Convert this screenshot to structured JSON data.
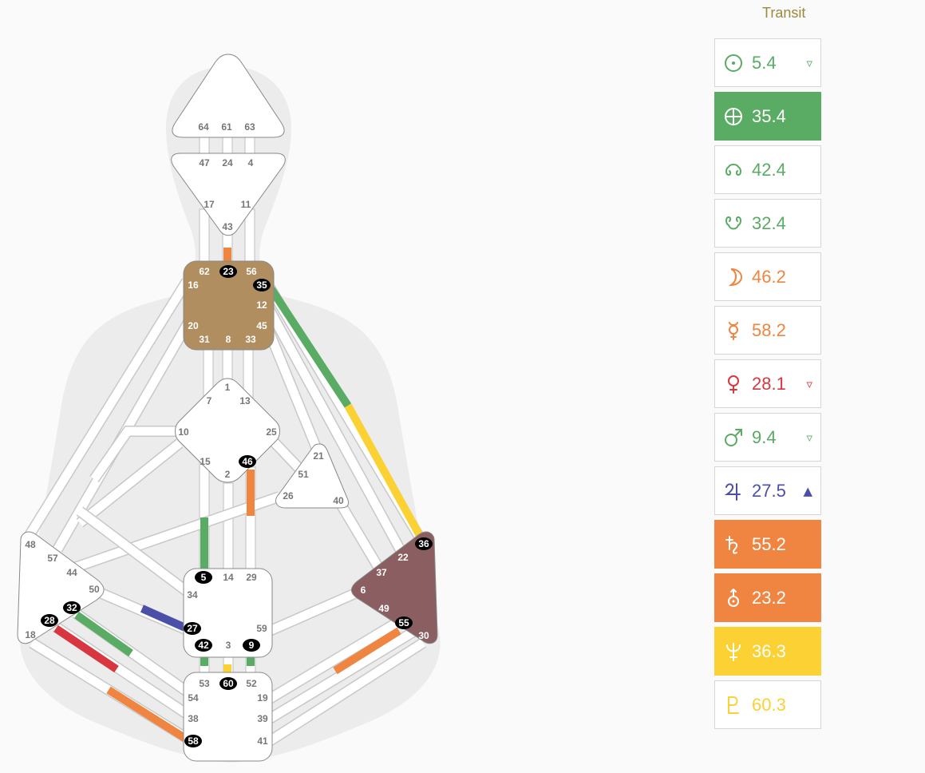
{
  "transit_title": "Transit",
  "planets": [
    {
      "icon": "sun-icon",
      "value": "5.4",
      "arrow": "▿",
      "color": "#5aab64",
      "bg": "#ffffff"
    },
    {
      "icon": "earth-icon",
      "value": "35.4",
      "arrow": "",
      "color": "#ffffff",
      "bg": "#5aab64"
    },
    {
      "icon": "north-node-icon",
      "value": "42.4",
      "arrow": "",
      "color": "#5aab64",
      "bg": "#ffffff"
    },
    {
      "icon": "south-node-icon",
      "value": "32.4",
      "arrow": "",
      "color": "#5aab64",
      "bg": "#ffffff"
    },
    {
      "icon": "moon-icon",
      "value": "46.2",
      "arrow": "",
      "color": "#ef8540",
      "bg": "#ffffff"
    },
    {
      "icon": "mercury-icon",
      "value": "58.2",
      "arrow": "",
      "color": "#ef8540",
      "bg": "#ffffff"
    },
    {
      "icon": "venus-icon",
      "value": "28.1",
      "arrow": "▿",
      "color": "#d9373f",
      "bg": "#ffffff"
    },
    {
      "icon": "mars-icon",
      "value": "9.4",
      "arrow": "▿",
      "color": "#5aab64",
      "bg": "#ffffff"
    },
    {
      "icon": "jupiter-icon",
      "value": "27.5",
      "arrow": "▲",
      "color": "#4b4fa8",
      "bg": "#ffffff"
    },
    {
      "icon": "saturn-icon",
      "value": "55.2",
      "arrow": "",
      "color": "#ffffff",
      "bg": "#ef8540"
    },
    {
      "icon": "uranus-icon",
      "value": "23.2",
      "arrow": "",
      "color": "#ffffff",
      "bg": "#ef8540"
    },
    {
      "icon": "neptune-icon",
      "value": "36.3",
      "arrow": "",
      "color": "#ffffff",
      "bg": "#fbd133"
    },
    {
      "icon": "pluto-icon",
      "value": "60.3",
      "arrow": "",
      "color": "#fbd133",
      "bg": "#ffffff"
    }
  ],
  "centers": {
    "head": {
      "gates": [
        "64",
        "61",
        "63"
      ]
    },
    "ajna": {
      "gates": [
        "47",
        "24",
        "4",
        "17",
        "11",
        "43"
      ]
    },
    "throat": {
      "gates": [
        "62",
        "23",
        "56",
        "16",
        "35",
        "12",
        "20",
        "45",
        "31",
        "8",
        "33"
      ],
      "color": "#b08e60"
    },
    "g": {
      "gates": [
        "1",
        "7",
        "13",
        "10",
        "25",
        "15",
        "46",
        "2"
      ]
    },
    "heart": {
      "gates": [
        "21",
        "51",
        "26",
        "40"
      ]
    },
    "spleen": {
      "gates": [
        "48",
        "57",
        "44",
        "50",
        "32",
        "28",
        "18"
      ]
    },
    "sacral": {
      "gates": [
        "5",
        "14",
        "29",
        "34",
        "27",
        "59",
        "42",
        "3",
        "9"
      ]
    },
    "solar_plexus": {
      "gates": [
        "36",
        "22",
        "37",
        "6",
        "49",
        "55",
        "30"
      ],
      "color": "#8b5e61"
    },
    "root": {
      "gates": [
        "53",
        "60",
        "52",
        "54",
        "19",
        "38",
        "39",
        "58",
        "41"
      ]
    }
  },
  "colors": {
    "green": "#5aab64",
    "orange": "#ef8540",
    "yellow": "#fbd133",
    "red": "#d9373f",
    "blue": "#4b4fa8",
    "silhouette": "#ececec"
  }
}
